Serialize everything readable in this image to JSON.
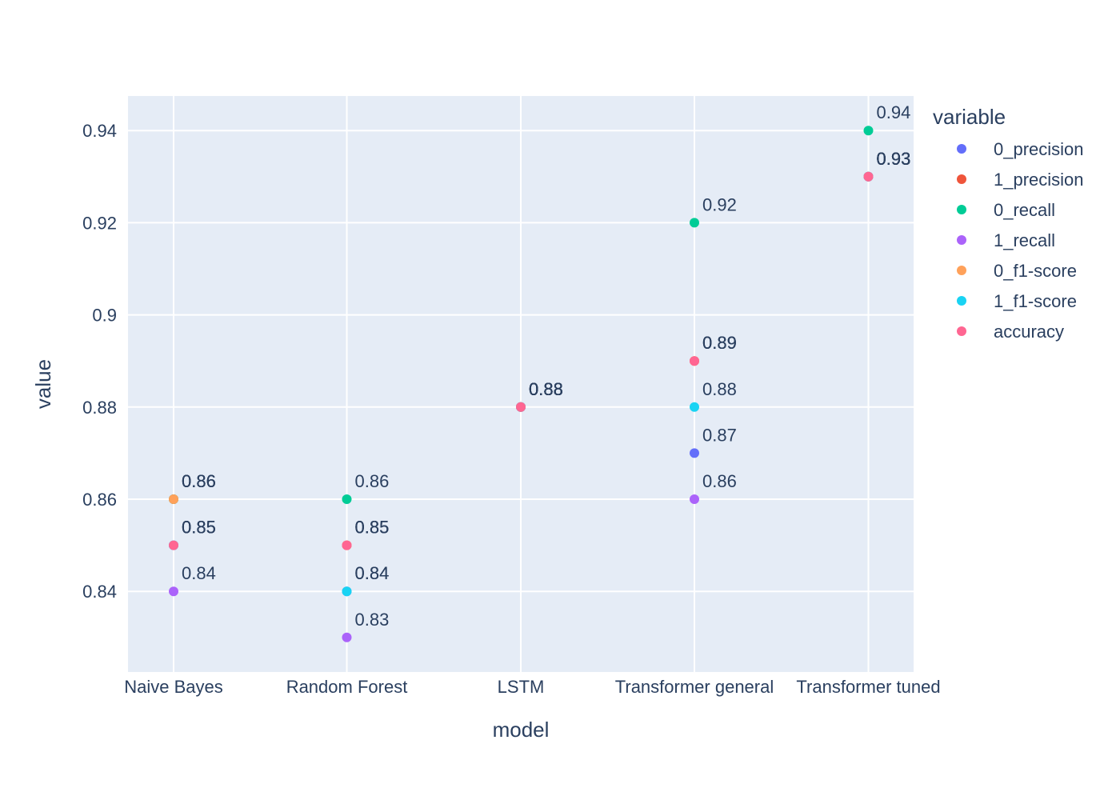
{
  "chart_data": {
    "type": "scatter",
    "title": "",
    "xlabel": "model",
    "ylabel": "value",
    "categories": [
      "Naive Bayes",
      "Random Forest",
      "LSTM",
      "Transformer general",
      "Transformer tuned"
    ],
    "ylim": [
      0.8225,
      0.9475
    ],
    "yticks": [
      0.84,
      0.86,
      0.88,
      0.9,
      0.92,
      0.94
    ],
    "ytick_labels": [
      "0.84",
      "0.86",
      "0.88",
      "0.9",
      "0.92",
      "0.94"
    ],
    "grid": true,
    "legend": {
      "title": "variable",
      "position": "right"
    },
    "series": [
      {
        "name": "0_precision",
        "color": "#636efa",
        "values": [
          0.85,
          0.84,
          0.88,
          0.87,
          0.93
        ]
      },
      {
        "name": "1_precision",
        "color": "#EF553B",
        "values": [
          0.86,
          0.85,
          0.88,
          0.89,
          0.93
        ]
      },
      {
        "name": "0_recall",
        "color": "#00cc96",
        "values": [
          0.86,
          0.86,
          0.88,
          0.92,
          0.94
        ]
      },
      {
        "name": "1_recall",
        "color": "#ab63fa",
        "values": [
          0.84,
          0.83,
          0.88,
          0.86,
          0.93
        ]
      },
      {
        "name": "0_f1-score",
        "color": "#FFA15A",
        "values": [
          0.86,
          0.85,
          0.88,
          0.89,
          0.93
        ]
      },
      {
        "name": "1_f1-score",
        "color": "#19d3f3",
        "values": [
          0.85,
          0.84,
          0.88,
          0.88,
          0.93
        ]
      },
      {
        "name": "accuracy",
        "color": "#FF6692",
        "values": [
          0.85,
          0.85,
          0.88,
          0.89,
          0.93
        ]
      }
    ]
  }
}
